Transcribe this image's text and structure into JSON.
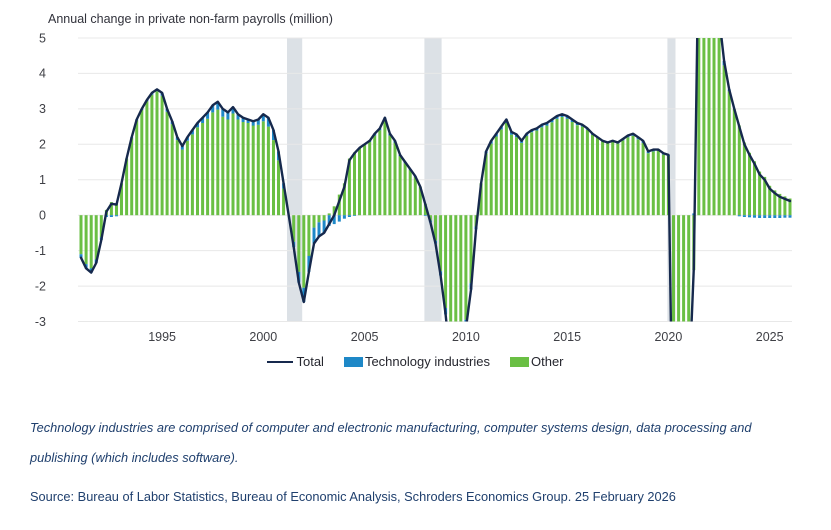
{
  "page": {
    "title": "Annual change in private non-farm payrolls (million)",
    "footnote": "Technology industries are comprised of computer and electronic manufacturing, computer systems design, data processing and publishing (which includes software).",
    "source": "Source: Bureau of Labor Statistics, Bureau of Economic Analysis, Schroders Economics Group. 25 February 2026"
  },
  "legend": {
    "items": [
      {
        "label": "Total",
        "swatch": "line",
        "color": "#16294d"
      },
      {
        "label": "Technology industries",
        "swatch": "rect",
        "color": "#1e88c7"
      },
      {
        "label": "Other",
        "swatch": "rect",
        "color": "#6abf44"
      }
    ]
  },
  "colors": {
    "total_line": "#16294d",
    "technology_bar": "#1e88c7",
    "other_bar": "#6abf44",
    "recession_band": "#dce1e6",
    "gridline": "#e8e8e8",
    "axis_text": "#3f4046"
  },
  "chart_data": {
    "type": "bar",
    "subtype": "stacked_quarterly_bars_with_total_line_overlay",
    "title": "Annual change in private non-farm payrolls (million)",
    "units": "million",
    "xlabel": "",
    "ylabel": "",
    "ylim": [
      -3,
      5
    ],
    "xlim": [
      1990.85,
      2026.1
    ],
    "y_ticks": [
      5,
      4,
      3,
      2,
      1,
      0,
      -1,
      -2,
      -3
    ],
    "x_ticks": [
      1995,
      2000,
      2005,
      2010,
      2015,
      2020,
      2025
    ],
    "grid": "horizontal",
    "legend_position": "bottom",
    "clipping_note": "Values beyond the -3 to 5 axis range (2009 trough, 2020 collapse, 2021-22 rebound) are clipped at the plot edges",
    "recession_bands": [
      {
        "from": 2001.17,
        "to": 2001.92
      },
      {
        "from": 2007.95,
        "to": 2008.8
      },
      {
        "from": 2019.95,
        "to": 2020.35
      }
    ],
    "x_start": 1991.0,
    "x_step": 0.25,
    "x_end": 2026.0,
    "series": [
      {
        "name": "Total",
        "type": "line",
        "color": "#16294d",
        "values": [
          -1.2,
          -1.5,
          -1.62,
          -1.35,
          -0.7,
          0.1,
          0.32,
          0.3,
          0.9,
          1.6,
          2.2,
          2.7,
          3.0,
          3.25,
          3.45,
          3.55,
          3.45,
          3.0,
          2.65,
          2.2,
          1.95,
          2.2,
          2.4,
          2.6,
          2.75,
          2.9,
          3.1,
          3.2,
          3.0,
          2.9,
          3.05,
          2.85,
          2.75,
          2.7,
          2.65,
          2.7,
          2.85,
          2.75,
          2.4,
          1.8,
          0.9,
          0.0,
          -0.9,
          -1.9,
          -2.45,
          -1.6,
          -0.8,
          -0.6,
          -0.5,
          -0.25,
          0.0,
          0.4,
          0.8,
          1.55,
          1.75,
          1.9,
          2.0,
          2.1,
          2.3,
          2.45,
          2.75,
          2.3,
          2.1,
          1.7,
          1.5,
          1.3,
          1.1,
          0.8,
          0.3,
          -0.2,
          -0.8,
          -1.7,
          -2.8,
          -4.2,
          -5.0,
          -4.3,
          -3.2,
          -2.1,
          -0.4,
          0.9,
          1.8,
          2.1,
          2.3,
          2.5,
          2.7,
          2.35,
          2.28,
          2.1,
          2.3,
          2.4,
          2.45,
          2.55,
          2.6,
          2.7,
          2.8,
          2.85,
          2.8,
          2.7,
          2.6,
          2.55,
          2.45,
          2.3,
          2.2,
          2.1,
          2.05,
          2.1,
          2.05,
          2.15,
          2.25,
          2.3,
          2.2,
          2.1,
          1.8,
          1.85,
          1.85,
          1.75,
          1.7,
          -8.0,
          -9.0,
          -7.5,
          -5.0,
          -1.5,
          8.0,
          10.0,
          8.5,
          7.0,
          5.6,
          4.35,
          3.55,
          3.0,
          2.5,
          2.0,
          1.7,
          1.45,
          1.15,
          1.0,
          0.75,
          0.62,
          0.52,
          0.46,
          0.4
        ]
      },
      {
        "name": "Technology industries",
        "type": "bar",
        "color": "#1e88c7",
        "values": [
          -0.1,
          -0.12,
          -0.12,
          -0.1,
          -0.08,
          -0.05,
          -0.05,
          -0.03,
          0,
          0,
          0.02,
          0.02,
          0.03,
          0.03,
          0.05,
          0.05,
          0.08,
          0.08,
          0.08,
          0.08,
          0.1,
          0.1,
          0.12,
          0.12,
          0.15,
          0.18,
          0.2,
          0.22,
          0.22,
          0.2,
          0.18,
          0.15,
          0.12,
          0.1,
          0.12,
          0.15,
          0.2,
          0.25,
          0.28,
          0.25,
          0.15,
          0,
          -0.15,
          -0.3,
          -0.4,
          -0.45,
          -0.45,
          -0.4,
          -0.35,
          -0.3,
          -0.25,
          -0.18,
          -0.1,
          -0.05,
          -0.02,
          0,
          0.02,
          0.03,
          0.05,
          0.05,
          0.07,
          0.05,
          0.05,
          0.03,
          0.03,
          0.02,
          0.02,
          0,
          -0.02,
          -0.05,
          -0.08,
          -0.12,
          -0.18,
          -0.25,
          -0.3,
          -0.3,
          -0.25,
          -0.18,
          -0.08,
          0,
          0.05,
          0.08,
          0.08,
          0.08,
          0.1,
          0.08,
          0.08,
          0.06,
          0.06,
          0.06,
          0.06,
          0.07,
          0.07,
          0.08,
          0.08,
          0.08,
          0.08,
          0.07,
          0.06,
          0.05,
          0.04,
          0.03,
          0.02,
          0.02,
          0.02,
          0.02,
          0.03,
          0.04,
          0.05,
          0.06,
          0.06,
          0.06,
          0.05,
          0.05,
          0.04,
          0.04,
          0.03,
          -0.2,
          -0.25,
          -0.2,
          -0.15,
          0.05,
          0.2,
          0.25,
          0.25,
          0.22,
          0.18,
          0.12,
          0.05,
          0,
          -0.03,
          -0.05,
          -0.06,
          -0.07,
          -0.08,
          -0.08,
          -0.08,
          -0.08,
          -0.08,
          -0.07,
          -0.07
        ]
      },
      {
        "name": "Other",
        "type": "bar",
        "color": "#6abf44",
        "derivation": "Total minus Technology industries (stacked with Technology so bars sum to the Total line)"
      }
    ]
  }
}
